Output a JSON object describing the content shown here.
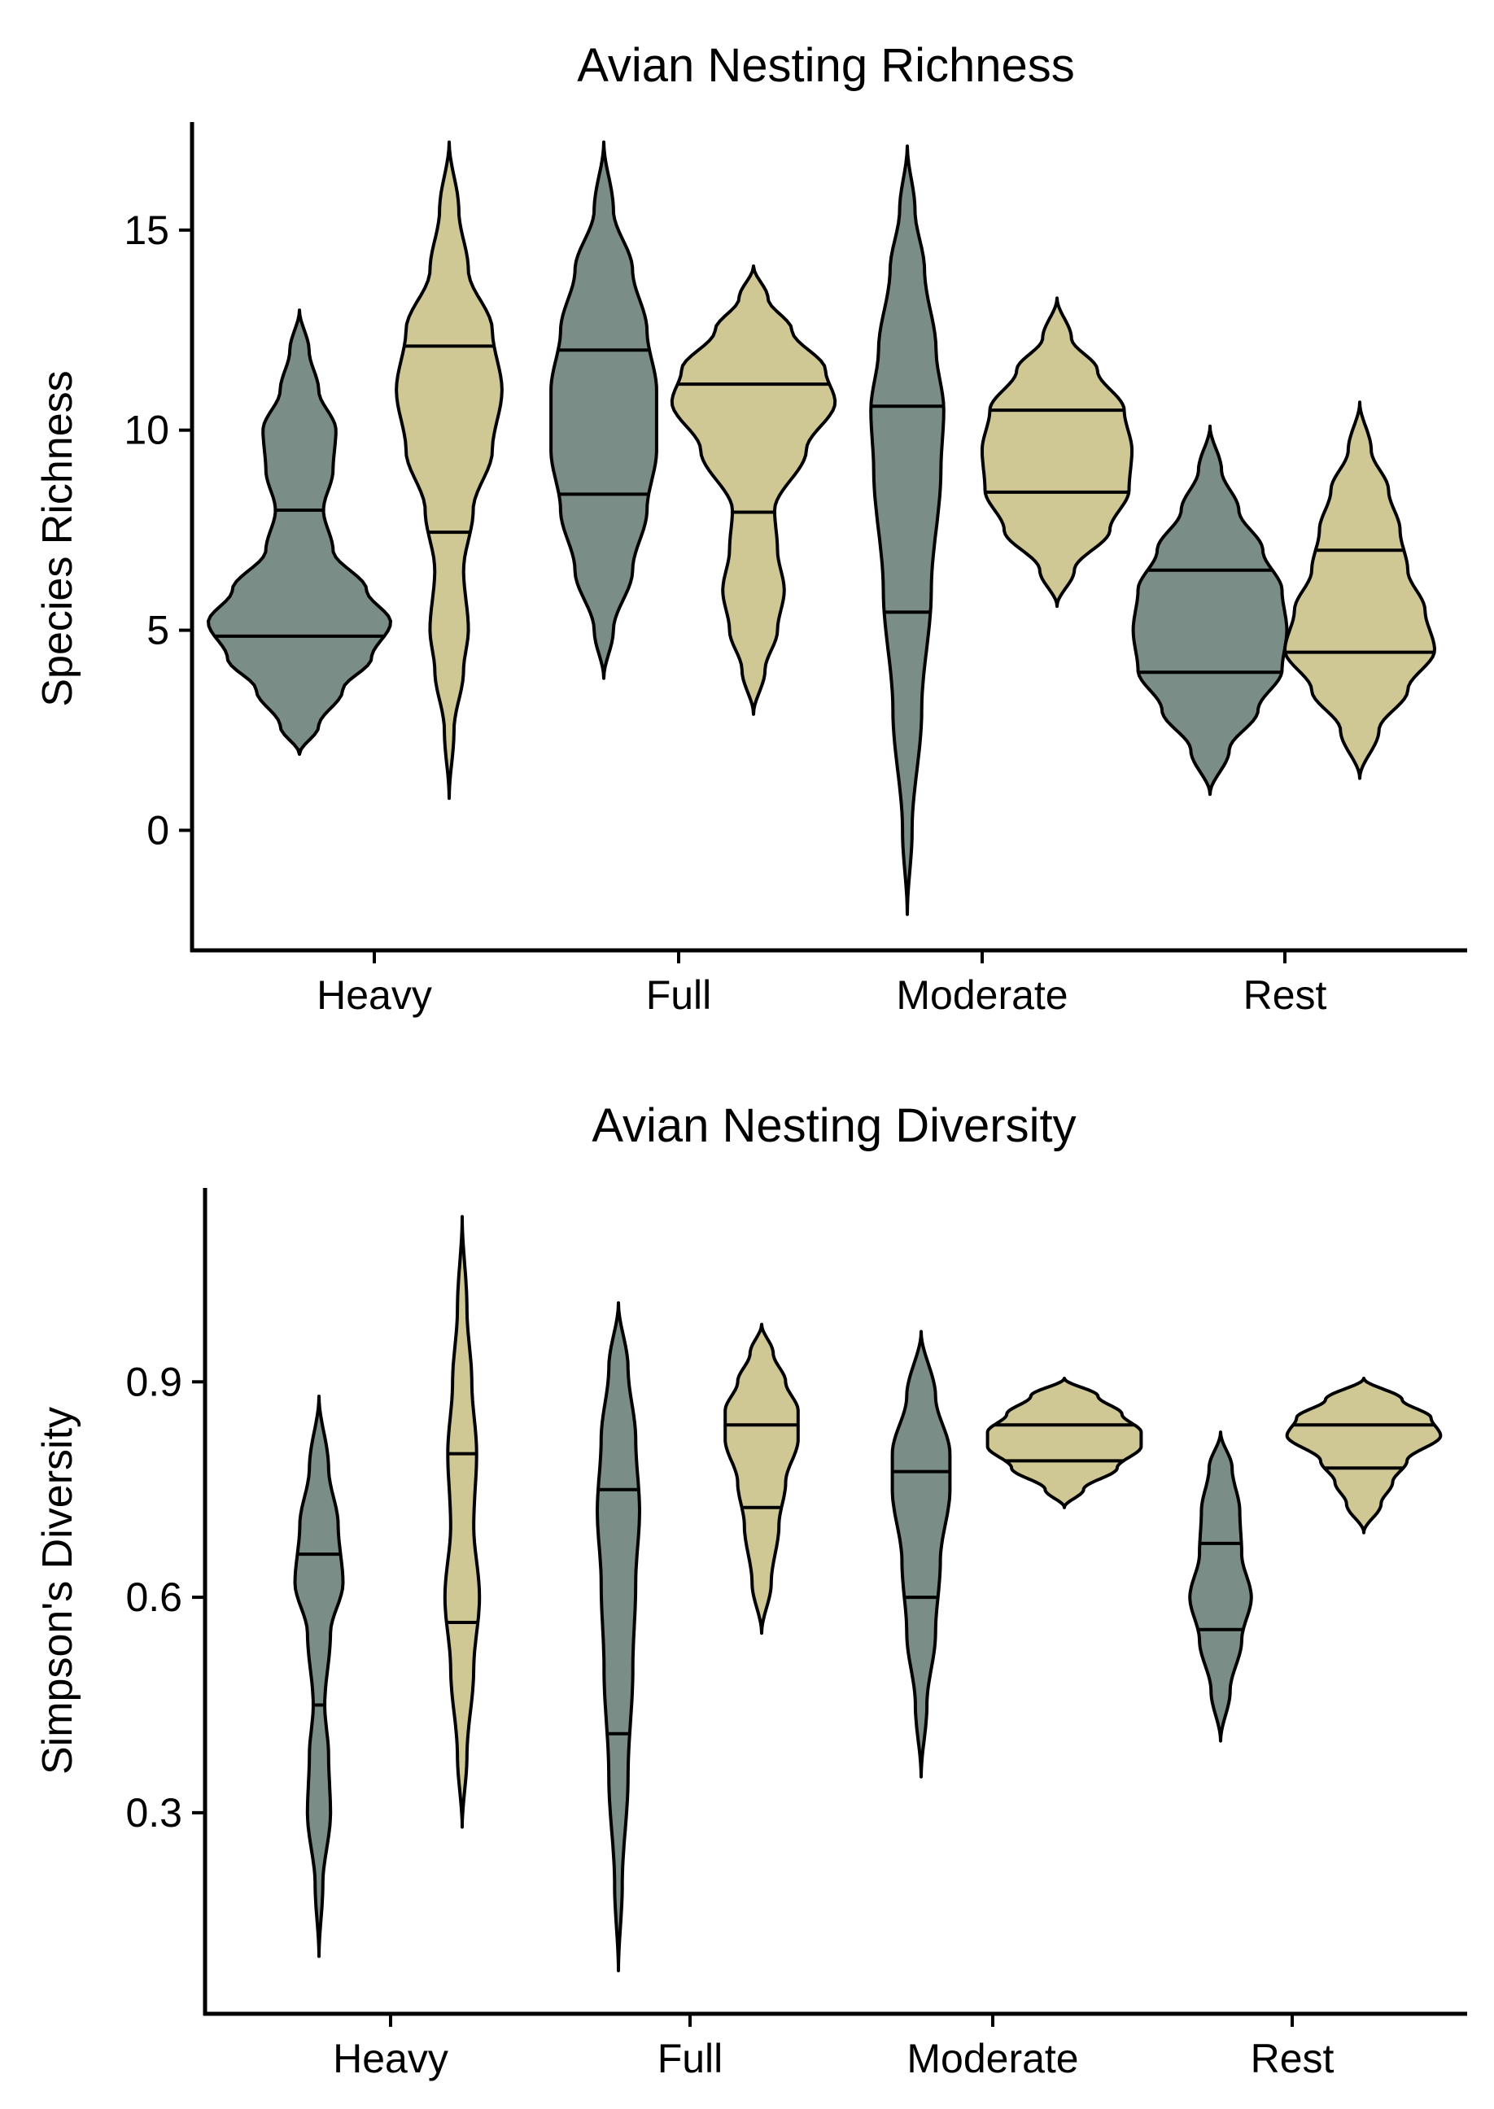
{
  "colors": {
    "group_a": "#7a8d86",
    "group_b": "#cfc894",
    "outline": "#000000"
  },
  "chart_data": [
    {
      "type": "violin",
      "title": "Avian Nesting Richness",
      "xlabel": "",
      "ylabel": "Species Richness",
      "categories": [
        "Heavy",
        "Full",
        "Moderate",
        "Rest"
      ],
      "ylim": [
        -3,
        17.7
      ],
      "yticks": [
        0,
        5,
        10,
        15
      ],
      "yticklabels": [
        "0",
        "5",
        "10",
        "15"
      ],
      "violins": [
        {
          "category": "Heavy",
          "group": "group_a",
          "range": [
            1.9,
            13.0
          ],
          "quantiles": [
            4.85,
            8.0
          ],
          "profile": [
            [
              1.9,
              0.0
            ],
            [
              2.6,
              0.2
            ],
            [
              3.5,
              0.45
            ],
            [
              4.3,
              0.75
            ],
            [
              5.2,
              0.95
            ],
            [
              6.0,
              0.7
            ],
            [
              7.0,
              0.35
            ],
            [
              8.0,
              0.25
            ],
            [
              9.0,
              0.35
            ],
            [
              10.0,
              0.38
            ],
            [
              11.0,
              0.2
            ],
            [
              12.0,
              0.1
            ],
            [
              13.0,
              0.0
            ]
          ]
        },
        {
          "category": "Heavy",
          "group": "group_b",
          "range": [
            0.8,
            17.2
          ],
          "quantiles": [
            7.45,
            12.1
          ],
          "profile": [
            [
              0.8,
              0.0
            ],
            [
              2.5,
              0.05
            ],
            [
              4.0,
              0.15
            ],
            [
              5.0,
              0.2
            ],
            [
              6.5,
              0.15
            ],
            [
              8.0,
              0.25
            ],
            [
              9.5,
              0.45
            ],
            [
              11.0,
              0.55
            ],
            [
              12.5,
              0.45
            ],
            [
              14.0,
              0.2
            ],
            [
              15.5,
              0.1
            ],
            [
              17.2,
              0.0
            ]
          ]
        },
        {
          "category": "Full",
          "group": "group_a",
          "range": [
            3.8,
            17.2
          ],
          "quantiles": [
            8.4,
            12.0
          ],
          "profile": [
            [
              3.8,
              0.0
            ],
            [
              5.0,
              0.1
            ],
            [
              6.5,
              0.3
            ],
            [
              8.0,
              0.45
            ],
            [
              9.5,
              0.55
            ],
            [
              11.0,
              0.55
            ],
            [
              12.5,
              0.45
            ],
            [
              14.0,
              0.3
            ],
            [
              15.5,
              0.1
            ],
            [
              17.2,
              0.0
            ]
          ]
        },
        {
          "category": "Full",
          "group": "group_b",
          "range": [
            2.9,
            14.1
          ],
          "quantiles": [
            7.95,
            11.15
          ],
          "profile": [
            [
              2.9,
              0.0
            ],
            [
              4.0,
              0.12
            ],
            [
              5.0,
              0.25
            ],
            [
              6.0,
              0.32
            ],
            [
              7.0,
              0.25
            ],
            [
              8.0,
              0.22
            ],
            [
              9.5,
              0.55
            ],
            [
              10.7,
              0.85
            ],
            [
              11.5,
              0.75
            ],
            [
              12.5,
              0.4
            ],
            [
              13.3,
              0.15
            ],
            [
              14.1,
              0.0
            ]
          ]
        },
        {
          "category": "Moderate",
          "group": "group_a",
          "range": [
            -2.1,
            17.1
          ],
          "quantiles": [
            5.45,
            10.6
          ],
          "profile": [
            [
              -2.1,
              0.0
            ],
            [
              0.0,
              0.05
            ],
            [
              3.0,
              0.15
            ],
            [
              6.0,
              0.25
            ],
            [
              9.0,
              0.35
            ],
            [
              10.5,
              0.38
            ],
            [
              12.0,
              0.3
            ],
            [
              14.0,
              0.18
            ],
            [
              15.5,
              0.08
            ],
            [
              17.1,
              0.0
            ]
          ]
        },
        {
          "category": "Moderate",
          "group": "group_b",
          "range": [
            5.6,
            13.3
          ],
          "quantiles": [
            8.45,
            10.5
          ],
          "profile": [
            [
              5.6,
              0.0
            ],
            [
              6.5,
              0.18
            ],
            [
              7.5,
              0.55
            ],
            [
              8.5,
              0.75
            ],
            [
              9.5,
              0.78
            ],
            [
              10.5,
              0.7
            ],
            [
              11.5,
              0.42
            ],
            [
              12.3,
              0.15
            ],
            [
              13.3,
              0.0
            ]
          ]
        },
        {
          "category": "Rest",
          "group": "group_a",
          "range": [
            0.9,
            10.1
          ],
          "quantiles": [
            3.95,
            6.5
          ],
          "profile": [
            [
              0.9,
              0.0
            ],
            [
              2.0,
              0.2
            ],
            [
              3.0,
              0.5
            ],
            [
              4.0,
              0.75
            ],
            [
              5.0,
              0.8
            ],
            [
              6.0,
              0.75
            ],
            [
              7.0,
              0.55
            ],
            [
              8.0,
              0.3
            ],
            [
              9.0,
              0.12
            ],
            [
              10.1,
              0.0
            ]
          ]
        },
        {
          "category": "Rest",
          "group": "group_b",
          "range": [
            1.3,
            10.7
          ],
          "quantiles": [
            4.45,
            7.0
          ],
          "profile": [
            [
              1.3,
              0.0
            ],
            [
              2.5,
              0.2
            ],
            [
              3.5,
              0.5
            ],
            [
              4.5,
              0.78
            ],
            [
              5.5,
              0.68
            ],
            [
              6.5,
              0.5
            ],
            [
              7.5,
              0.42
            ],
            [
              8.5,
              0.3
            ],
            [
              9.5,
              0.12
            ],
            [
              10.7,
              0.0
            ]
          ]
        }
      ]
    },
    {
      "type": "violin",
      "title": "Avian Nesting Diversity",
      "xlabel": "",
      "ylabel": "Simpson's Diversity",
      "categories": [
        "Heavy",
        "Full",
        "Moderate",
        "Rest"
      ],
      "ylim": [
        0.02,
        1.17
      ],
      "yticks": [
        0.3,
        0.6,
        0.9
      ],
      "yticklabels": [
        "0.3",
        "0.6",
        "0.9"
      ],
      "violins": [
        {
          "category": "Heavy",
          "group": "group_a",
          "range": [
            0.1,
            0.88
          ],
          "quantiles": [
            0.45,
            0.66
          ],
          "profile": [
            [
              0.1,
              0.0
            ],
            [
              0.2,
              0.04
            ],
            [
              0.3,
              0.12
            ],
            [
              0.38,
              0.1
            ],
            [
              0.45,
              0.06
            ],
            [
              0.55,
              0.12
            ],
            [
              0.62,
              0.25
            ],
            [
              0.7,
              0.2
            ],
            [
              0.78,
              0.1
            ],
            [
              0.88,
              0.0
            ]
          ]
        },
        {
          "category": "Heavy",
          "group": "group_b",
          "range": [
            0.28,
            1.13
          ],
          "quantiles": [
            0.565,
            0.8
          ],
          "profile": [
            [
              0.28,
              0.0
            ],
            [
              0.38,
              0.05
            ],
            [
              0.5,
              0.12
            ],
            [
              0.6,
              0.18
            ],
            [
              0.7,
              0.12
            ],
            [
              0.8,
              0.15
            ],
            [
              0.9,
              0.1
            ],
            [
              1.0,
              0.05
            ],
            [
              1.13,
              0.0
            ]
          ]
        },
        {
          "category": "Full",
          "group": "group_a",
          "range": [
            0.08,
            1.01
          ],
          "quantiles": [
            0.41,
            0.75
          ],
          "profile": [
            [
              0.08,
              0.0
            ],
            [
              0.2,
              0.04
            ],
            [
              0.35,
              0.1
            ],
            [
              0.5,
              0.15
            ],
            [
              0.62,
              0.18
            ],
            [
              0.72,
              0.22
            ],
            [
              0.82,
              0.18
            ],
            [
              0.92,
              0.1
            ],
            [
              1.01,
              0.0
            ]
          ]
        },
        {
          "category": "Full",
          "group": "group_b",
          "range": [
            0.55,
            0.98
          ],
          "quantiles": [
            0.725,
            0.84
          ],
          "profile": [
            [
              0.55,
              0.0
            ],
            [
              0.62,
              0.1
            ],
            [
              0.7,
              0.18
            ],
            [
              0.76,
              0.25
            ],
            [
              0.82,
              0.38
            ],
            [
              0.86,
              0.38
            ],
            [
              0.9,
              0.25
            ],
            [
              0.94,
              0.12
            ],
            [
              0.98,
              0.0
            ]
          ]
        },
        {
          "category": "Moderate",
          "group": "group_a",
          "range": [
            0.35,
            0.97
          ],
          "quantiles": [
            0.6,
            0.775
          ],
          "profile": [
            [
              0.35,
              0.0
            ],
            [
              0.45,
              0.06
            ],
            [
              0.55,
              0.15
            ],
            [
              0.65,
              0.2
            ],
            [
              0.75,
              0.3
            ],
            [
              0.8,
              0.3
            ],
            [
              0.88,
              0.15
            ],
            [
              0.97,
              0.0
            ]
          ]
        },
        {
          "category": "Moderate",
          "group": "group_b",
          "range": [
            0.725,
            0.905
          ],
          "quantiles": [
            0.79,
            0.84
          ],
          "profile": [
            [
              0.725,
              0.0
            ],
            [
              0.75,
              0.2
            ],
            [
              0.78,
              0.55
            ],
            [
              0.81,
              0.8
            ],
            [
              0.83,
              0.8
            ],
            [
              0.855,
              0.6
            ],
            [
              0.88,
              0.35
            ],
            [
              0.905,
              0.0
            ]
          ]
        },
        {
          "category": "Rest",
          "group": "group_a",
          "range": [
            0.4,
            0.83
          ],
          "quantiles": [
            0.555,
            0.675
          ],
          "profile": [
            [
              0.4,
              0.0
            ],
            [
              0.47,
              0.1
            ],
            [
              0.54,
              0.22
            ],
            [
              0.6,
              0.32
            ],
            [
              0.66,
              0.22
            ],
            [
              0.72,
              0.2
            ],
            [
              0.78,
              0.12
            ],
            [
              0.83,
              0.0
            ]
          ]
        },
        {
          "category": "Rest",
          "group": "group_b",
          "range": [
            0.69,
            0.905
          ],
          "quantiles": [
            0.78,
            0.84
          ],
          "profile": [
            [
              0.69,
              0.0
            ],
            [
              0.73,
              0.18
            ],
            [
              0.76,
              0.3
            ],
            [
              0.79,
              0.45
            ],
            [
              0.825,
              0.8
            ],
            [
              0.85,
              0.7
            ],
            [
              0.875,
              0.4
            ],
            [
              0.905,
              0.0
            ]
          ]
        }
      ]
    }
  ]
}
